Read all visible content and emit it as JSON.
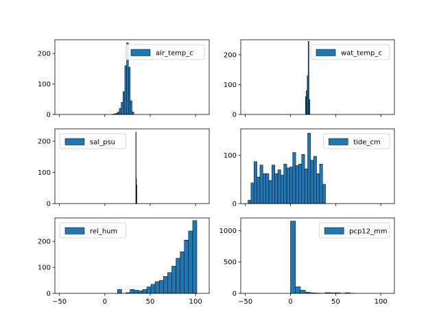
{
  "chart_data": [
    {
      "type": "bar",
      "legend": "air_temp_c",
      "legend_loc": "upper right",
      "xlim": [
        -55,
        115
      ],
      "ylim": [
        0,
        245
      ],
      "xticks": [
        -50,
        0,
        50,
        100
      ],
      "yticks": [
        0,
        100,
        200
      ],
      "show_xtick_labels": false,
      "bins": [
        {
          "x0": 8,
          "x1": 10,
          "y": 1
        },
        {
          "x0": 10,
          "x1": 12,
          "y": 2
        },
        {
          "x0": 12,
          "x1": 14,
          "y": 4
        },
        {
          "x0": 14,
          "x1": 16,
          "y": 8
        },
        {
          "x0": 16,
          "x1": 18,
          "y": 20
        },
        {
          "x0": 18,
          "x1": 20,
          "y": 40
        },
        {
          "x0": 20,
          "x1": 22,
          "y": 75
        },
        {
          "x0": 22,
          "x1": 24,
          "y": 160
        },
        {
          "x0": 24,
          "x1": 26,
          "y": 235
        },
        {
          "x0": 26,
          "x1": 28,
          "y": 155
        },
        {
          "x0": 28,
          "x1": 30,
          "y": 45
        },
        {
          "x0": 30,
          "x1": 32,
          "y": 8
        }
      ]
    },
    {
      "type": "bar",
      "legend": "wat_temp_c",
      "legend_loc": "upper right",
      "xlim": [
        -55,
        115
      ],
      "ylim": [
        0,
        250
      ],
      "xticks": [
        -50,
        0,
        50,
        100
      ],
      "yticks": [
        0,
        100,
        200
      ],
      "show_xtick_labels": false,
      "bins": [
        {
          "x0": 16.5,
          "x1": 17.5,
          "y": 60
        },
        {
          "x0": 17.5,
          "x1": 18.5,
          "y": 80
        },
        {
          "x0": 18.5,
          "x1": 19.5,
          "y": 130
        },
        {
          "x0": 19.5,
          "x1": 20.5,
          "y": 245
        },
        {
          "x0": 20.5,
          "x1": 21.5,
          "y": 50
        }
      ]
    },
    {
      "type": "bar",
      "legend": "sal_psu",
      "legend_loc": "upper left",
      "xlim": [
        -55,
        115
      ],
      "ylim": [
        0,
        240
      ],
      "xticks": [
        -50,
        0,
        50,
        100
      ],
      "yticks": [
        0,
        100,
        200
      ],
      "show_xtick_labels": false,
      "bins": [
        {
          "x0": 34.1,
          "x1": 34.5,
          "y": 230
        },
        {
          "x0": 34.5,
          "x1": 34.9,
          "y": 80
        },
        {
          "x0": 34.9,
          "x1": 35.3,
          "y": 60
        }
      ]
    },
    {
      "type": "bar",
      "legend": "tide_cm",
      "legend_loc": "upper right",
      "xlim": [
        -55,
        115
      ],
      "ylim": [
        0,
        155
      ],
      "xticks": [
        -50,
        0,
        50,
        100
      ],
      "yticks": [
        0,
        100
      ],
      "show_xtick_labels": false,
      "bins": [
        {
          "x0": -47,
          "x1": -43.7,
          "y": 7
        },
        {
          "x0": -43.7,
          "x1": -40.4,
          "y": 43
        },
        {
          "x0": -40.4,
          "x1": -37.1,
          "y": 87
        },
        {
          "x0": -37.1,
          "x1": -33.8,
          "y": 55
        },
        {
          "x0": -33.8,
          "x1": -30.5,
          "y": 80
        },
        {
          "x0": -30.5,
          "x1": -27.2,
          "y": 62
        },
        {
          "x0": -27.2,
          "x1": -23.9,
          "y": 62
        },
        {
          "x0": -23.9,
          "x1": -20.6,
          "y": 48
        },
        {
          "x0": -20.6,
          "x1": -17.3,
          "y": 80
        },
        {
          "x0": -17.3,
          "x1": -14,
          "y": 62
        },
        {
          "x0": -14,
          "x1": -10.7,
          "y": 70
        },
        {
          "x0": -10.7,
          "x1": -7.4,
          "y": 59
        },
        {
          "x0": -7.4,
          "x1": -4.1,
          "y": 82
        },
        {
          "x0": -4.1,
          "x1": -0.8,
          "y": 74
        },
        {
          "x0": -0.8,
          "x1": 2.5,
          "y": 76
        },
        {
          "x0": 2.5,
          "x1": 5.8,
          "y": 106
        },
        {
          "x0": 5.8,
          "x1": 9.1,
          "y": 79
        },
        {
          "x0": 9.1,
          "x1": 12.4,
          "y": 82
        },
        {
          "x0": 12.4,
          "x1": 15.7,
          "y": 102
        },
        {
          "x0": 15.7,
          "x1": 19,
          "y": 72
        },
        {
          "x0": 19,
          "x1": 22.3,
          "y": 146
        },
        {
          "x0": 22.3,
          "x1": 25.6,
          "y": 90
        },
        {
          "x0": 25.6,
          "x1": 28.9,
          "y": 98
        },
        {
          "x0": 28.9,
          "x1": 32.2,
          "y": 62
        },
        {
          "x0": 32.2,
          "x1": 35.5,
          "y": 82
        },
        {
          "x0": 35.5,
          "x1": 38.8,
          "y": 40
        }
      ]
    },
    {
      "type": "bar",
      "legend": "rel_hum",
      "legend_loc": "upper left",
      "xlim": [
        -55,
        115
      ],
      "ylim": [
        0,
        290
      ],
      "xticks": [
        -50,
        0,
        50,
        100
      ],
      "yticks": [
        0,
        100,
        200
      ],
      "show_xtick_labels": true,
      "xticklabels": [
        "−50",
        "0",
        "50",
        "100"
      ],
      "bins": [
        {
          "x0": 14,
          "x1": 18.6,
          "y": 15
        },
        {
          "x0": 18.6,
          "x1": 23.2,
          "y": 0
        },
        {
          "x0": 23.2,
          "x1": 27.8,
          "y": 3
        },
        {
          "x0": 27.8,
          "x1": 32.4,
          "y": 15
        },
        {
          "x0": 32.4,
          "x1": 37,
          "y": 12
        },
        {
          "x0": 37,
          "x1": 41.6,
          "y": 10
        },
        {
          "x0": 41.6,
          "x1": 46.2,
          "y": 15
        },
        {
          "x0": 46.2,
          "x1": 50.8,
          "y": 25
        },
        {
          "x0": 50.8,
          "x1": 55.4,
          "y": 35
        },
        {
          "x0": 55.4,
          "x1": 60,
          "y": 45
        },
        {
          "x0": 60,
          "x1": 64.6,
          "y": 50
        },
        {
          "x0": 64.6,
          "x1": 69.2,
          "y": 65
        },
        {
          "x0": 69.2,
          "x1": 73.8,
          "y": 80
        },
        {
          "x0": 73.8,
          "x1": 78.4,
          "y": 105
        },
        {
          "x0": 78.4,
          "x1": 83,
          "y": 135
        },
        {
          "x0": 83,
          "x1": 87.6,
          "y": 160
        },
        {
          "x0": 87.6,
          "x1": 92.2,
          "y": 205
        },
        {
          "x0": 92.2,
          "x1": 96.8,
          "y": 240
        },
        {
          "x0": 96.8,
          "x1": 101.4,
          "y": 280
        }
      ]
    },
    {
      "type": "bar",
      "legend": "pcp12_mm",
      "legend_loc": "upper right",
      "xlim": [
        -55,
        115
      ],
      "ylim": [
        0,
        1200
      ],
      "xticks": [
        -50,
        0,
        50,
        100
      ],
      "yticks": [
        0,
        500,
        1000
      ],
      "show_xtick_labels": true,
      "xticklabels": [
        "−50",
        "0",
        "50",
        "100"
      ],
      "bins": [
        {
          "x0": 0,
          "x1": 5.5,
          "y": 1150
        },
        {
          "x0": 5.5,
          "x1": 11,
          "y": 105
        },
        {
          "x0": 11,
          "x1": 16.5,
          "y": 50
        },
        {
          "x0": 16.5,
          "x1": 22,
          "y": 20
        },
        {
          "x0": 22,
          "x1": 27.5,
          "y": 8
        },
        {
          "x0": 27.5,
          "x1": 33,
          "y": 5
        },
        {
          "x0": 33,
          "x1": 38.5,
          "y": 2
        },
        {
          "x0": 38.5,
          "x1": 44,
          "y": 12
        },
        {
          "x0": 44,
          "x1": 49.5,
          "y": 8
        },
        {
          "x0": 49.5,
          "x1": 55,
          "y": 10
        },
        {
          "x0": 55,
          "x1": 60.5,
          "y": 3
        },
        {
          "x0": 60.5,
          "x1": 66,
          "y": 10
        },
        {
          "x0": 66,
          "x1": 71.5,
          "y": 3
        }
      ]
    }
  ],
  "colors": {
    "bar_fill": "#1f77b4",
    "bar_edge": "#000000",
    "legend_border": "#cccccc"
  }
}
